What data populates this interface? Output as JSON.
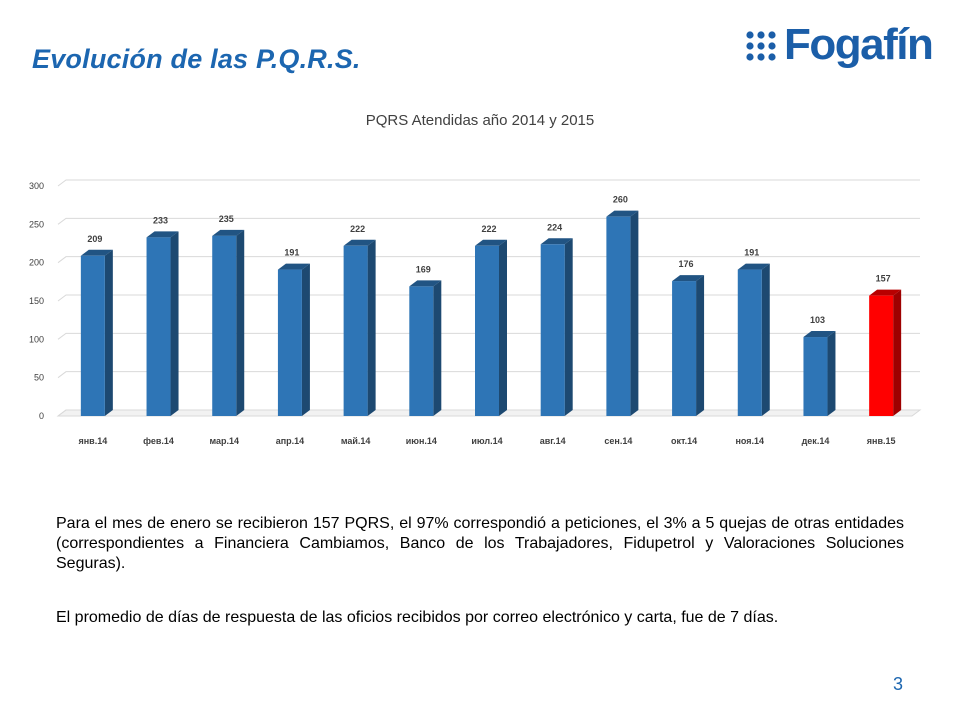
{
  "slide": {
    "title": "Evolución de las P.Q.R.S.",
    "page_number": "3"
  },
  "logo": {
    "text": "Fogafín",
    "icon": "dot-grid-icon",
    "color": "#1b5ea8"
  },
  "body": {
    "paragraph1": "Para el mes de enero se recibieron 157 PQRS, el 97% correspondió a peticiones, el 3% a 5 quejas de otras entidades (correspondientes a Financiera Cambiamos, Banco de los Trabajadores, Fidupetrol y Valoraciones Soluciones Seguras).",
    "paragraph2": "El promedio de días de respuesta de las oficios recibidos por correo electrónico y carta, fue de 7 días."
  },
  "colors": {
    "title": "#1c66b0",
    "bar": "#2e75b6",
    "bar_highlight": "#ff0000"
  },
  "chart_data": {
    "type": "bar",
    "style": "3d-column",
    "title": "PQRS Atendidas año 2014 y 2015",
    "xlabel": "",
    "ylabel": "",
    "categories": [
      "янв.14",
      "фев.14",
      "мар.14",
      "апр.14",
      "май.14",
      "июн.14",
      "июл.14",
      "авг.14",
      "сен.14",
      "окт.14",
      "ноя.14",
      "дек.14",
      "янв.15"
    ],
    "values": [
      209,
      233,
      235,
      191,
      222,
      169,
      222,
      224,
      260,
      176,
      191,
      103,
      157
    ],
    "highlight_index": 12,
    "ylim": [
      0,
      300
    ],
    "yticks": [
      0,
      50,
      100,
      150,
      200,
      250,
      300
    ],
    "grid": true,
    "legend": "none"
  }
}
